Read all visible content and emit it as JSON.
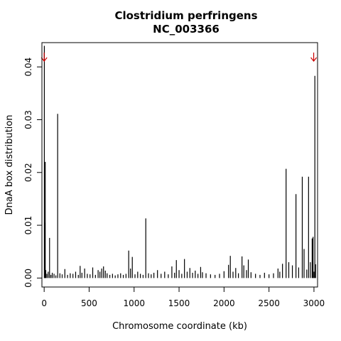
{
  "chart_data": {
    "type": "bar",
    "title": "Clostridium perfringens",
    "subtitle": "NC_003366",
    "xlabel": "Chromosome coordinate (kb)",
    "ylabel": "DnaA box distribution",
    "xlim": [
      -25,
      3040
    ],
    "ylim": [
      -0.0017,
      0.0446
    ],
    "x_ticks": [
      0,
      500,
      1000,
      1500,
      2000,
      2500,
      3000
    ],
    "y_ticks": [
      0.0,
      0.01,
      0.02,
      0.03,
      0.04
    ],
    "y_tick_labels": [
      "0.00",
      "0.01",
      "0.02",
      "0.03",
      "0.04"
    ],
    "grid": false,
    "legend": "none",
    "bar_color": "#000000",
    "arrow_color": "#cc0000",
    "arrows_at_kb": [
      0,
      2997
    ],
    "x": [
      2,
      8,
      12,
      18,
      30,
      45,
      60,
      75,
      90,
      110,
      130,
      150,
      175,
      200,
      230,
      260,
      290,
      320,
      350,
      380,
      400,
      420,
      450,
      480,
      510,
      540,
      570,
      600,
      620,
      640,
      660,
      680,
      700,
      730,
      760,
      790,
      820,
      850,
      880,
      910,
      940,
      960,
      980,
      1010,
      1040,
      1070,
      1100,
      1130,
      1160,
      1190,
      1220,
      1260,
      1300,
      1340,
      1380,
      1420,
      1450,
      1470,
      1500,
      1530,
      1560,
      1590,
      1620,
      1650,
      1680,
      1710,
      1740,
      1760,
      1800,
      1850,
      1900,
      1950,
      2000,
      2050,
      2070,
      2100,
      2130,
      2160,
      2200,
      2220,
      2250,
      2270,
      2300,
      2350,
      2400,
      2450,
      2500,
      2550,
      2600,
      2620,
      2650,
      2690,
      2720,
      2760,
      2800,
      2830,
      2870,
      2890,
      2920,
      2940,
      2960,
      2980,
      2990,
      3000,
      3010,
      3018
    ],
    "values": [
      0.044,
      0.0105,
      0.022,
      0.0015,
      0.0008,
      0.0012,
      0.0076,
      0.0006,
      0.001,
      0.0008,
      0.0005,
      0.0311,
      0.0009,
      0.0007,
      0.0017,
      0.0006,
      0.0009,
      0.0008,
      0.0012,
      0.0006,
      0.0023,
      0.001,
      0.0018,
      0.0008,
      0.0007,
      0.002,
      0.0006,
      0.0015,
      0.0012,
      0.0018,
      0.0022,
      0.0014,
      0.0009,
      0.0006,
      0.0008,
      0.0005,
      0.0007,
      0.0009,
      0.0006,
      0.0008,
      0.0052,
      0.0018,
      0.004,
      0.0007,
      0.0012,
      0.0008,
      0.0006,
      0.0113,
      0.0009,
      0.0007,
      0.001,
      0.0015,
      0.0008,
      0.0012,
      0.0007,
      0.0022,
      0.001,
      0.0034,
      0.0015,
      0.0008,
      0.0036,
      0.0012,
      0.0019,
      0.001,
      0.0014,
      0.0008,
      0.0021,
      0.0011,
      0.0009,
      0.0007,
      0.0006,
      0.0008,
      0.0013,
      0.0025,
      0.0042,
      0.0012,
      0.0019,
      0.0009,
      0.0041,
      0.0024,
      0.0015,
      0.0035,
      0.0011,
      0.0008,
      0.0006,
      0.001,
      0.0007,
      0.0009,
      0.0018,
      0.0012,
      0.0027,
      0.0207,
      0.003,
      0.0024,
      0.0159,
      0.002,
      0.0192,
      0.0055,
      0.0016,
      0.0192,
      0.003,
      0.0075,
      0.0078,
      0.0012,
      0.0383,
      0.0026
    ]
  }
}
